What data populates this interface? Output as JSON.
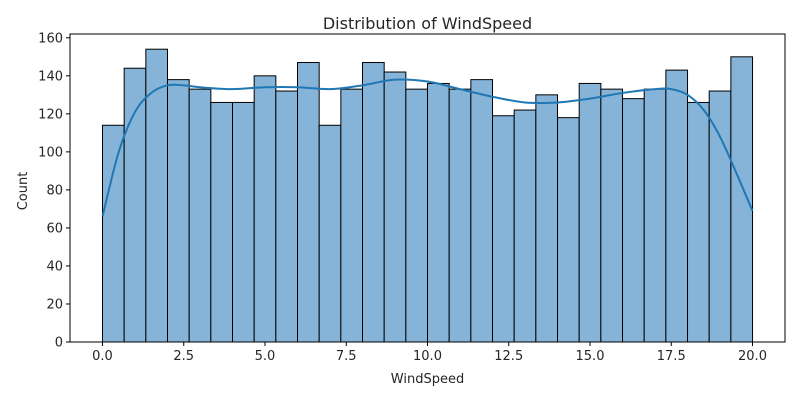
{
  "chart_data": {
    "type": "bar",
    "title": "Distribution of WindSpeed",
    "xlabel": "WindSpeed",
    "ylabel": "Count",
    "xlim": [
      -1.0,
      21.0
    ],
    "ylim": [
      0,
      162
    ],
    "x_ticks": [
      0.0,
      2.5,
      5.0,
      7.5,
      10.0,
      12.5,
      15.0,
      17.5,
      20.0
    ],
    "x_tick_labels": [
      "0.0",
      "2.5",
      "5.0",
      "7.5",
      "10.0",
      "12.5",
      "15.0",
      "17.5",
      "20.0"
    ],
    "y_ticks": [
      0,
      20,
      40,
      60,
      80,
      100,
      120,
      140,
      160
    ],
    "y_tick_labels": [
      "0",
      "20",
      "40",
      "60",
      "80",
      "100",
      "120",
      "140",
      "160"
    ],
    "bin_start": 0.0,
    "bin_width": 0.6667,
    "values": [
      114,
      144,
      154,
      138,
      133,
      126,
      126,
      140,
      132,
      147,
      114,
      133,
      147,
      142,
      133,
      136,
      133,
      138,
      119,
      122,
      130,
      118,
      136,
      133,
      128,
      133,
      143,
      126,
      132,
      150
    ],
    "kde": {
      "x": [
        0.0,
        0.5,
        1.0,
        1.5,
        2.0,
        2.5,
        3.0,
        4.0,
        5.0,
        6.0,
        7.0,
        8.0,
        9.0,
        10.0,
        11.0,
        12.0,
        13.0,
        14.0,
        15.0,
        16.0,
        17.0,
        17.5,
        18.0,
        18.5,
        19.0,
        19.5,
        20.0
      ],
      "y": [
        66,
        100,
        121,
        131,
        135,
        135,
        134,
        133,
        134,
        134,
        133,
        135,
        138,
        137,
        133,
        129,
        126,
        126,
        128,
        131,
        133,
        133,
        130,
        122,
        108,
        89,
        69
      ]
    },
    "grid": false,
    "legend": "none",
    "colors": {
      "bar_fill": "#86b4d8",
      "bar_edge": "#000000",
      "kde_line": "#1f77b4",
      "axis": "#000000",
      "text": "#262626"
    }
  }
}
